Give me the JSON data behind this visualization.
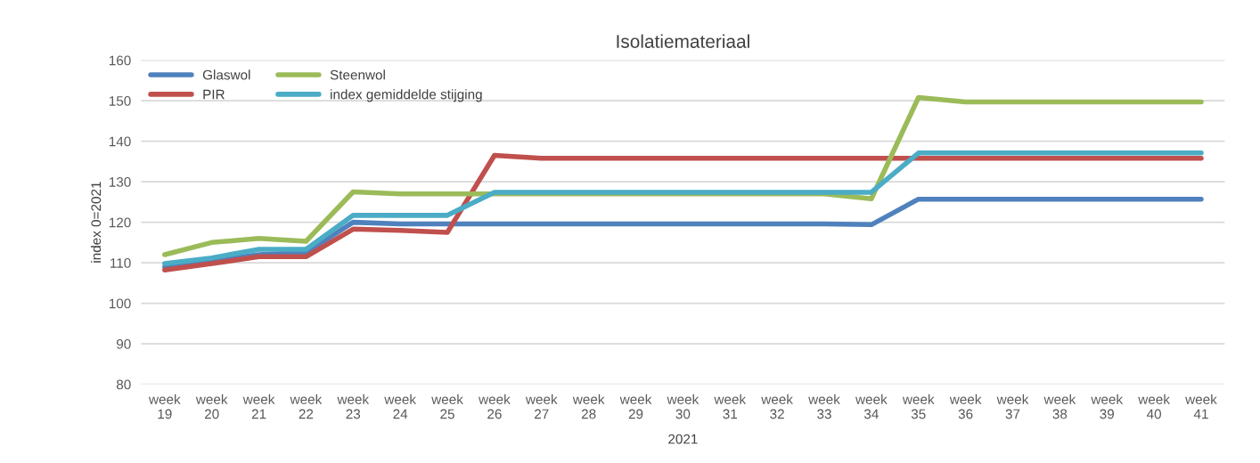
{
  "chart_data": {
    "type": "line",
    "title": "Isolatiemateriaal",
    "ylabel": "index 0=2021",
    "xlabel": "2021",
    "categories": [
      "week 19",
      "week 20",
      "week 21",
      "week 22",
      "week 23",
      "week 24",
      "week 25",
      "week 26",
      "week 27",
      "week 28",
      "week 29",
      "week 30",
      "week 31",
      "week 32",
      "week 33",
      "week 34",
      "week 35",
      "week 36",
      "week 37",
      "week 38",
      "week 39",
      "week 40",
      "week 41"
    ],
    "series": [
      {
        "name": "Glaswol",
        "color": "#4f81bd",
        "values": [
          109,
          110.5,
          112,
          112.5,
          120,
          119.6,
          119.6,
          119.6,
          119.6,
          119.6,
          119.6,
          119.6,
          119.6,
          119.6,
          119.6,
          119.4,
          125.7,
          125.7,
          125.7,
          125.7,
          125.7,
          125.7,
          125.7
        ]
      },
      {
        "name": "PIR",
        "color": "#c0504d",
        "values": [
          108.2,
          109.8,
          111.5,
          111.5,
          118.3,
          118,
          117.5,
          136.5,
          135.8,
          135.8,
          135.8,
          135.8,
          135.8,
          135.8,
          135.8,
          135.8,
          135.8,
          135.8,
          135.8,
          135.8,
          135.8,
          135.8,
          135.8
        ]
      },
      {
        "name": "Steenwol",
        "color": "#9bbb59",
        "values": [
          112,
          115,
          116,
          115.3,
          127.5,
          127,
          127,
          127,
          127,
          127,
          127,
          127,
          127,
          127,
          127,
          125.8,
          150.8,
          149.7,
          149.7,
          149.7,
          149.7,
          149.7,
          149.7
        ]
      },
      {
        "name": "index gemiddelde stijging",
        "color": "#4bacc6",
        "values": [
          109.8,
          111.2,
          113.3,
          113.3,
          121.7,
          121.7,
          121.7,
          127.4,
          127.4,
          127.4,
          127.4,
          127.4,
          127.4,
          127.4,
          127.4,
          127.4,
          137.1,
          137.1,
          137.1,
          137.1,
          137.1,
          137.1,
          137.1
        ]
      }
    ],
    "ylim": [
      80,
      160
    ],
    "yticks": [
      80,
      90,
      100,
      110,
      120,
      130,
      140,
      150,
      160
    ],
    "grid": "y",
    "legend": "top left",
    "line_style": "solid",
    "marker": "none"
  }
}
